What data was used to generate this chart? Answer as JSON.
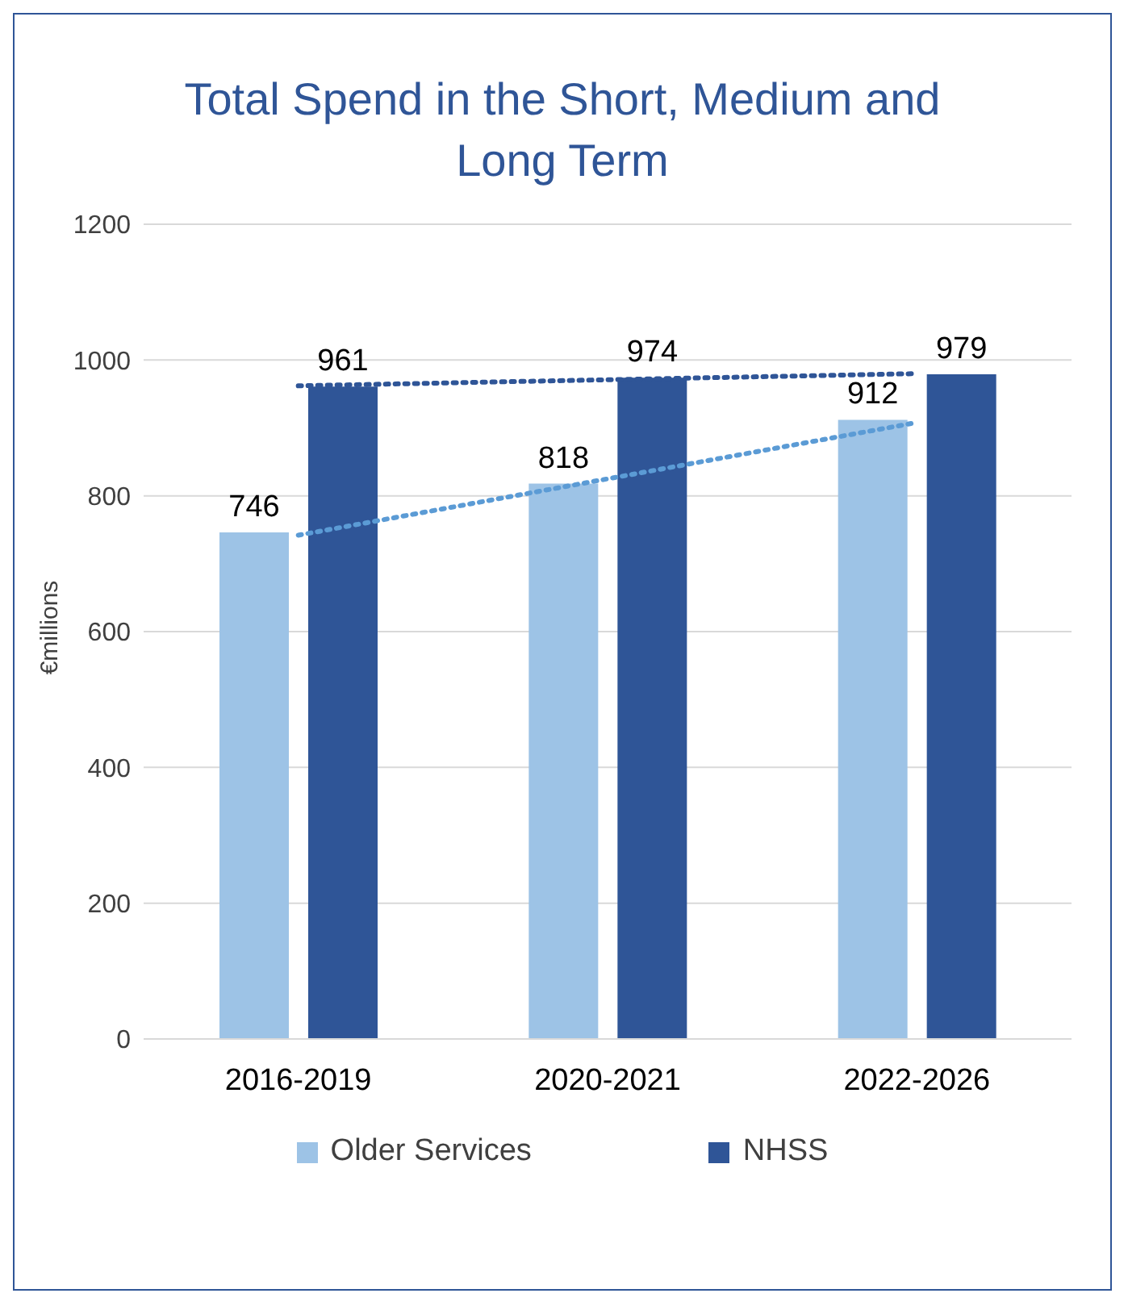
{
  "chart_data": {
    "type": "bar",
    "title": "Total Spend in the Short, Medium and Long Term",
    "ylabel": "€millions",
    "categories": [
      "2016-2019",
      "2020-2021",
      "2022-2026"
    ],
    "series": [
      {
        "name": "Older Services",
        "color": "#9dc3e6",
        "values": [
          746,
          818,
          912
        ],
        "value_labels": [
          "746",
          "818",
          "912"
        ]
      },
      {
        "name": "NHSS",
        "color": "#2f5597",
        "values": [
          961,
          974,
          979
        ],
        "value_labels": [
          "961",
          "974",
          "979"
        ]
      },
      {
        "type": "line",
        "x": [
          "2016-2019",
          "2020-2021",
          "2022-2026"
        ],
        "values": [
          742,
          825,
          908
        ],
        "color": "#5b9bd5",
        "line_style": "dotted"
      },
      {
        "type": "line",
        "x": [
          "2016-2019",
          "2020-2021",
          "2022-2026"
        ],
        "values": [
          962,
          971,
          980
        ],
        "color": "#2f5597",
        "line_style": "dotted"
      }
    ],
    "ylim": [
      0,
      1200
    ],
    "yticks": [
      0,
      200,
      400,
      600,
      800,
      1000,
      1200
    ],
    "grid": "y",
    "legend": "bottom"
  }
}
